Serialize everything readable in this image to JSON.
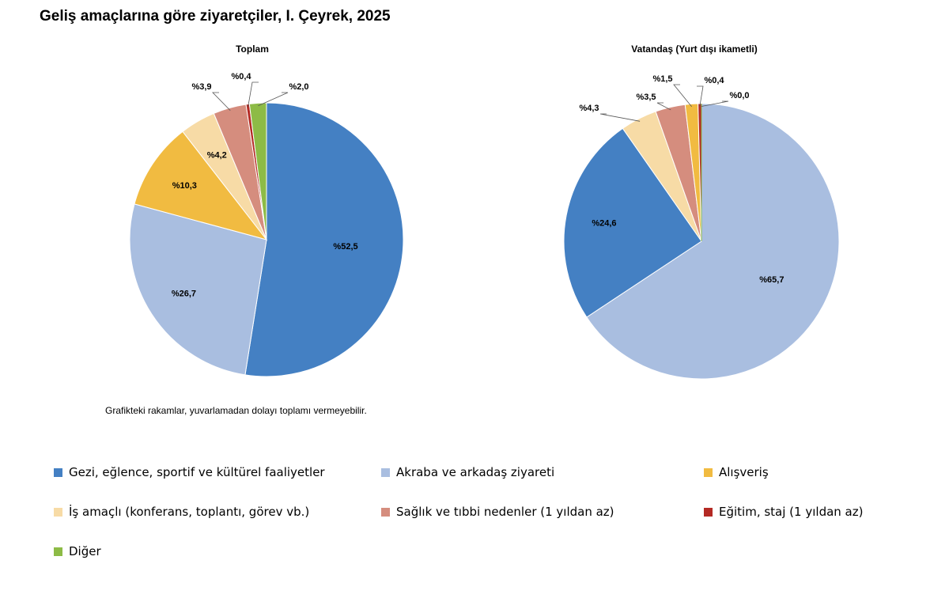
{
  "title": "Geliş amaçlarına göre ziyaretçiler, I. Çeyrek, 2025",
  "footnote": "Grafikteki rakamlar, yuvarlamadan dolayı toplamı vermeyebilir.",
  "colors": {
    "gezi": "#4480c3",
    "akraba": "#a9bee0",
    "alisveris": "#f1bb41",
    "is": "#f7dba6",
    "saglik": "#d58d7e",
    "egitim": "#b42a24",
    "diger": "#8dbb46"
  },
  "legend": [
    {
      "key": "gezi",
      "label": "Gezi, eğlence, sportif ve kültürel faaliyetler"
    },
    {
      "key": "akraba",
      "label": "Akraba ve arkadaş ziyareti"
    },
    {
      "key": "alisveris",
      "label": "Alışveriş"
    },
    {
      "key": "is",
      "label": "İş amaçlı (konferans, toplantı, görev vb.)"
    },
    {
      "key": "saglik",
      "label": "Sağlık ve tıbbi nedenler (1 yıldan az)"
    },
    {
      "key": "egitim",
      "label": "Eğitim, staj (1 yıldan az)"
    },
    {
      "key": "diger",
      "label": "Diğer"
    }
  ],
  "chart_data": [
    {
      "type": "pie",
      "title": "Toplam",
      "slices": [
        {
          "key": "gezi",
          "value": 52.5,
          "label": "%52,5"
        },
        {
          "key": "akraba",
          "value": 26.7,
          "label": "%26,7"
        },
        {
          "key": "alisveris",
          "value": 10.3,
          "label": "%10,3"
        },
        {
          "key": "is",
          "value": 4.2,
          "label": "%4,2"
        },
        {
          "key": "saglik",
          "value": 3.9,
          "label": "%3,9"
        },
        {
          "key": "egitim",
          "value": 0.4,
          "label": "%0,4"
        },
        {
          "key": "diger",
          "value": 2.0,
          "label": "%2,0"
        }
      ]
    },
    {
      "type": "pie",
      "title": "Vatandaş (Yurt dışı ikametli)",
      "slices": [
        {
          "key": "akraba",
          "value": 65.7,
          "label": "%65,7"
        },
        {
          "key": "gezi",
          "value": 24.6,
          "label": "%24,6"
        },
        {
          "key": "is",
          "value": 4.3,
          "label": "%4,3"
        },
        {
          "key": "saglik",
          "value": 3.5,
          "label": "%3,5"
        },
        {
          "key": "alisveris",
          "value": 1.5,
          "label": "%1,5"
        },
        {
          "key": "egitim",
          "value": 0.4,
          "label": "%0,4"
        },
        {
          "key": "diger",
          "value": 0.0,
          "label": "%0,0"
        }
      ]
    }
  ]
}
